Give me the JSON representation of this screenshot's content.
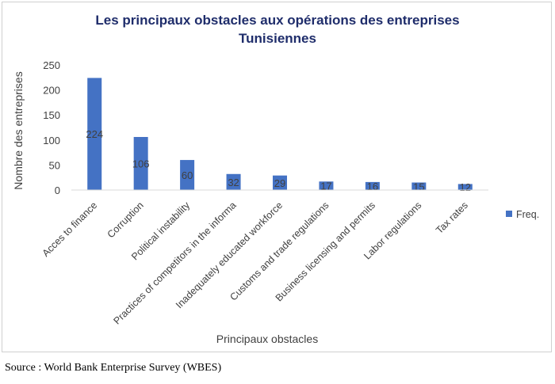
{
  "chart_data": {
    "type": "bar",
    "title_lines": [
      "Les principaux obstacles aux opérations des entreprises",
      "Tunisiennes"
    ],
    "xlabel": "Principaux obstacles",
    "ylabel": "Nombre des entreprises",
    "ylim": [
      0,
      250
    ],
    "yticks": [
      "0",
      "50",
      "100",
      "150",
      "200",
      "250"
    ],
    "categories": [
      "Acces to finance",
      "Corruption",
      "Political instability",
      "Practices of competitors in the informa",
      "Inadequately educated workforce",
      "Customs and trade regulations",
      "Business licensing and permits",
      "Labor regulations",
      "Tax rates"
    ],
    "series": [
      {
        "name": "Freq.",
        "values": [
          224,
          106,
          60,
          32,
          29,
          17,
          16,
          15,
          12
        ],
        "color": "#4472c4"
      }
    ],
    "data_labels": [
      "224",
      "106",
      "60",
      "32",
      "29",
      "17",
      "16",
      "15",
      "12"
    ],
    "legend_position": "right",
    "grid": false
  },
  "source_note": "Source : World Bank Enterprise Survey (WBES)"
}
